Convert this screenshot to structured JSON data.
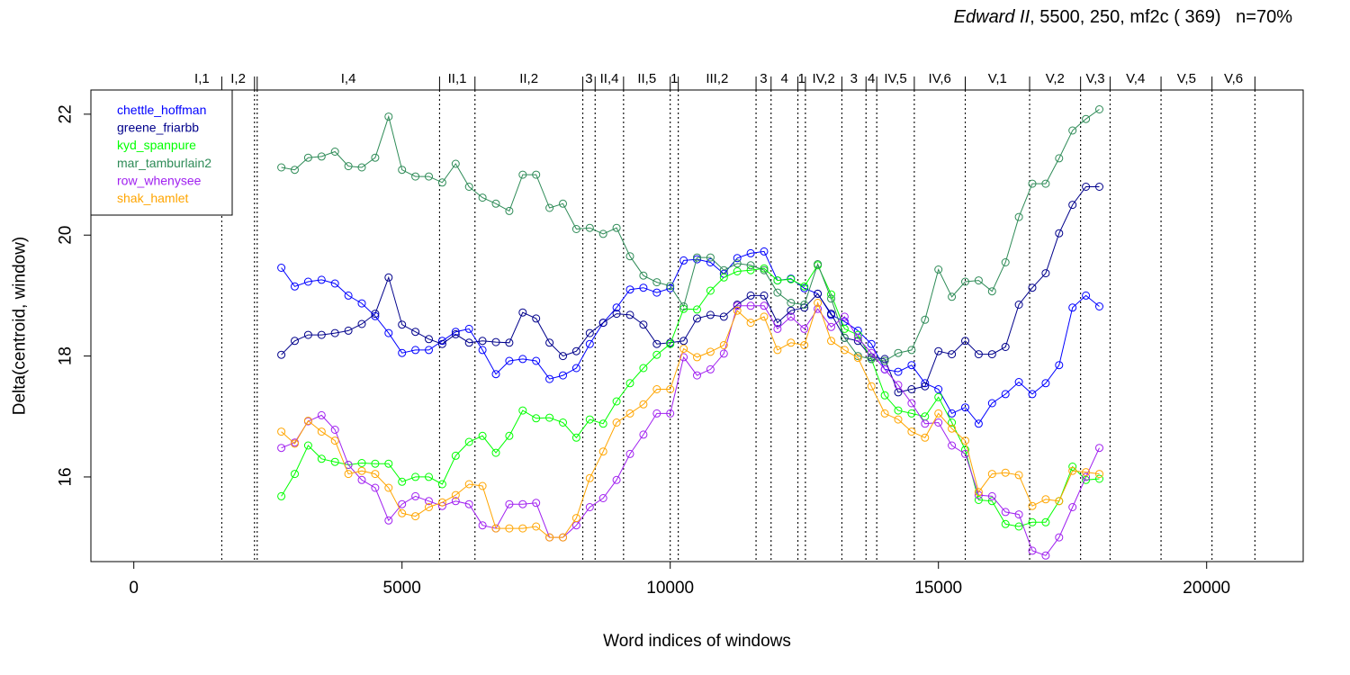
{
  "title": {
    "italic": "Edward II",
    "rest": ", 5500, 250, mf2c ( 369)   n=70%"
  },
  "chart_data": {
    "type": "line",
    "title": "Edward II, 5500, 250, mf2c ( 369)   n=70%",
    "xlabel": "Word indices of windows",
    "ylabel": "Delta(centroid, window)",
    "xlim": [
      -800,
      21800
    ],
    "ylim": [
      14.6,
      22.4
    ],
    "xticks": [
      0,
      5000,
      10000,
      15000,
      20000
    ],
    "yticks": [
      16,
      18,
      20,
      22
    ],
    "grid": false,
    "legend_position": "top-left",
    "markers": "open-circle",
    "scenes": [
      {
        "label": "I,1",
        "boundary": 1640
      },
      {
        "label": "I,2",
        "boundary": 2250
      },
      {
        "label": "",
        "boundary": 2300
      },
      {
        "label": "I,4",
        "boundary": 5700
      },
      {
        "label": "II,1",
        "boundary": 6360
      },
      {
        "label": "II,2",
        "boundary": 8370
      },
      {
        "label": "3",
        "boundary": 8600
      },
      {
        "label": "II,4",
        "boundary": 9130
      },
      {
        "label": "II,5",
        "boundary": 10000
      },
      {
        "label": "1",
        "boundary": 10150
      },
      {
        "label": "III,2",
        "boundary": 11600
      },
      {
        "label": "3",
        "boundary": 11880
      },
      {
        "label": "4",
        "boundary": 12380
      },
      {
        "label": "1",
        "boundary": 12520
      },
      {
        "label": "IV,2",
        "boundary": 13200
      },
      {
        "label": "3",
        "boundary": 13650
      },
      {
        "label": "4",
        "boundary": 13850
      },
      {
        "label": "IV,5",
        "boundary": 14550
      },
      {
        "label": "IV,6",
        "boundary": 15500
      },
      {
        "label": "V,1",
        "boundary": 16700
      },
      {
        "label": "V,2",
        "boundary": 17650
      },
      {
        "label": "V,3",
        "boundary": 18200
      },
      {
        "label": "V,4",
        "boundary": 19150
      },
      {
        "label": "V,5",
        "boundary": 20100
      },
      {
        "label": "V,6",
        "boundary": 20900
      }
    ],
    "x": [
      2750,
      3000,
      3250,
      3500,
      3750,
      4000,
      4250,
      4500,
      4750,
      5000,
      5250,
      5500,
      5750,
      6000,
      6250,
      6500,
      6750,
      7000,
      7250,
      7500,
      7750,
      8000,
      8250,
      8500,
      8750,
      9000,
      9250,
      9500,
      9750,
      10000,
      10250,
      10500,
      10750,
      11000,
      11250,
      11500,
      11750,
      12000,
      12250,
      12500,
      12750,
      13000,
      13250,
      13500,
      13750,
      14000,
      14250,
      14500,
      14750,
      15000,
      15250,
      15500,
      15750,
      16000,
      16250,
      16500,
      16750,
      17000,
      17250,
      17500,
      17750,
      18000
    ],
    "series": [
      {
        "name": "chettle_hoffman",
        "color": "#0000ff",
        "values": [
          19.46,
          19.15,
          19.23,
          19.26,
          19.2,
          19.0,
          18.87,
          18.66,
          18.38,
          18.05,
          18.1,
          18.1,
          18.25,
          18.4,
          18.45,
          18.1,
          17.7,
          17.92,
          17.95,
          17.92,
          17.62,
          17.68,
          17.8,
          18.2,
          18.55,
          18.8,
          19.1,
          19.13,
          19.05,
          19.12,
          19.58,
          19.6,
          19.55,
          19.36,
          19.62,
          19.7,
          19.73,
          19.25,
          19.28,
          19.12,
          19.03,
          18.68,
          18.57,
          18.42,
          18.2,
          17.78,
          17.74,
          17.85,
          17.55,
          17.45,
          17.05,
          17.15,
          16.88,
          17.22,
          17.37,
          17.57,
          17.37,
          17.55,
          17.85,
          18.8,
          19.0,
          18.82
        ]
      },
      {
        "name": "greene_friarbb",
        "color": "#00008b",
        "values": [
          18.02,
          18.25,
          18.35,
          18.35,
          18.38,
          18.42,
          18.53,
          18.7,
          19.3,
          18.52,
          18.4,
          18.28,
          18.2,
          18.36,
          18.22,
          18.25,
          18.23,
          18.22,
          18.72,
          18.62,
          18.22,
          18.0,
          18.08,
          18.38,
          18.55,
          18.7,
          18.68,
          18.52,
          18.2,
          18.22,
          18.25,
          18.62,
          18.68,
          18.65,
          18.85,
          19.0,
          19.0,
          18.55,
          18.75,
          18.8,
          19.03,
          18.7,
          18.3,
          18.25,
          17.98,
          17.95,
          17.4,
          17.45,
          17.5,
          18.08,
          18.03,
          18.25,
          18.03,
          18.03,
          18.15,
          18.85,
          19.13,
          19.37,
          20.03,
          20.5,
          20.8,
          20.8
        ]
      },
      {
        "name": "kyd_spanpure",
        "color": "#00ff00",
        "values": [
          15.68,
          16.05,
          16.52,
          16.3,
          16.25,
          16.2,
          16.23,
          16.22,
          16.22,
          15.92,
          16.0,
          16.0,
          15.88,
          16.35,
          16.58,
          16.68,
          16.4,
          16.68,
          17.1,
          16.97,
          16.98,
          16.9,
          16.65,
          16.95,
          16.88,
          17.25,
          17.55,
          17.8,
          18.02,
          18.2,
          18.78,
          18.77,
          19.08,
          19.3,
          19.4,
          19.42,
          19.45,
          19.25,
          19.27,
          19.15,
          19.5,
          19.02,
          18.45,
          18.35,
          17.95,
          17.35,
          17.1,
          17.05,
          17.0,
          17.32,
          16.9,
          16.45,
          15.62,
          15.6,
          15.22,
          15.18,
          15.25,
          15.25,
          15.6,
          16.17,
          15.95,
          15.97
        ]
      },
      {
        "name": "mar_tamburlain2",
        "color": "#2e8b57",
        "values": [
          21.12,
          21.08,
          21.28,
          21.3,
          21.38,
          21.14,
          21.12,
          21.28,
          21.96,
          21.08,
          20.97,
          20.97,
          20.87,
          21.18,
          20.8,
          20.62,
          20.52,
          20.4,
          21.0,
          21.0,
          20.45,
          20.52,
          20.1,
          20.12,
          20.02,
          20.12,
          19.65,
          19.33,
          19.22,
          19.16,
          18.82,
          19.63,
          19.63,
          19.42,
          19.53,
          19.5,
          19.42,
          19.05,
          18.88,
          18.85,
          19.52,
          18.95,
          18.3,
          18.0,
          17.95,
          17.92,
          18.05,
          18.1,
          18.6,
          19.43,
          18.98,
          19.23,
          19.25,
          19.07,
          19.55,
          20.3,
          20.85,
          20.85,
          21.27,
          21.73,
          21.92,
          22.08
        ]
      },
      {
        "name": "row_whenysee",
        "color": "#a020f0",
        "values": [
          16.48,
          16.57,
          16.92,
          17.02,
          16.78,
          16.2,
          15.95,
          15.82,
          15.28,
          15.55,
          15.68,
          15.6,
          15.52,
          15.6,
          15.55,
          15.2,
          15.15,
          15.55,
          15.55,
          15.57,
          15.0,
          15.0,
          15.2,
          15.5,
          15.65,
          15.95,
          16.38,
          16.7,
          17.05,
          17.05,
          17.98,
          17.68,
          17.78,
          18.04,
          18.83,
          18.83,
          18.83,
          18.45,
          18.65,
          18.45,
          18.78,
          18.48,
          18.65,
          18.3,
          18.05,
          17.78,
          17.52,
          17.22,
          16.88,
          16.9,
          16.52,
          16.38,
          15.7,
          15.68,
          15.42,
          15.38,
          14.78,
          14.7,
          15.0,
          15.5,
          16.0,
          16.48
        ]
      },
      {
        "name": "shak_hamlet",
        "color": "#ffa500",
        "values": [
          16.75,
          16.55,
          16.93,
          16.75,
          16.6,
          16.05,
          16.1,
          16.05,
          15.82,
          15.4,
          15.35,
          15.5,
          15.58,
          15.7,
          15.88,
          15.85,
          15.15,
          15.15,
          15.15,
          15.18,
          15.0,
          15.0,
          15.32,
          15.98,
          16.42,
          16.9,
          17.05,
          17.2,
          17.45,
          17.45,
          18.12,
          17.98,
          18.07,
          18.18,
          18.75,
          18.55,
          18.65,
          18.1,
          18.22,
          18.18,
          18.88,
          18.25,
          18.1,
          17.97,
          17.5,
          17.05,
          16.95,
          16.75,
          16.65,
          17.05,
          16.8,
          16.6,
          15.75,
          16.05,
          16.07,
          16.03,
          15.52,
          15.63,
          15.6,
          16.1,
          16.08,
          16.05
        ]
      }
    ]
  }
}
